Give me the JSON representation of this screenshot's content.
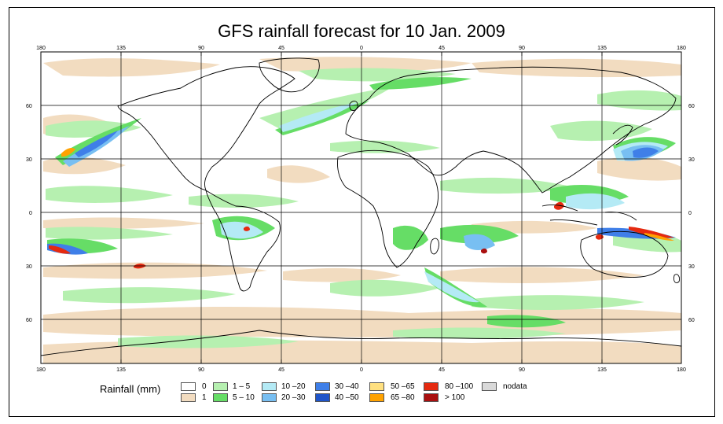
{
  "title": "GFS rainfall forecast for 10 Jan. 2009",
  "axes": {
    "lon_ticks": [
      "180",
      "135",
      "90",
      "45",
      "0",
      "45",
      "90",
      "135",
      "180"
    ],
    "lat_ticks_left": [
      "60",
      "30",
      "0",
      "30",
      "60"
    ],
    "lat_ticks_right": [
      "60",
      "30",
      "0",
      "30",
      "60"
    ]
  },
  "legend": {
    "label": "Rainfall (mm)",
    "items": [
      {
        "label": "0",
        "color": "#ffffff"
      },
      {
        "label": "1",
        "color": "#f2dcc0"
      },
      {
        "label": "1 – 5",
        "color": "#b6f0b0"
      },
      {
        "label": "5 – 10",
        "color": "#66dd66"
      },
      {
        "label": "10 –20",
        "color": "#b4eaf5"
      },
      {
        "label": "20 –30",
        "color": "#78bff2"
      },
      {
        "label": "30 –40",
        "color": "#3f7fe8"
      },
      {
        "label": "40 –50",
        "color": "#1f55c9"
      },
      {
        "label": "50 –65",
        "color": "#ffe080"
      },
      {
        "label": "65 –80",
        "color": "#ffa200"
      },
      {
        "label": "80 –100",
        "color": "#e52a10"
      },
      {
        "label": "> 100",
        "color": "#aa1010"
      },
      {
        "label": "nodata",
        "color": "#d9d9d9"
      }
    ]
  }
}
